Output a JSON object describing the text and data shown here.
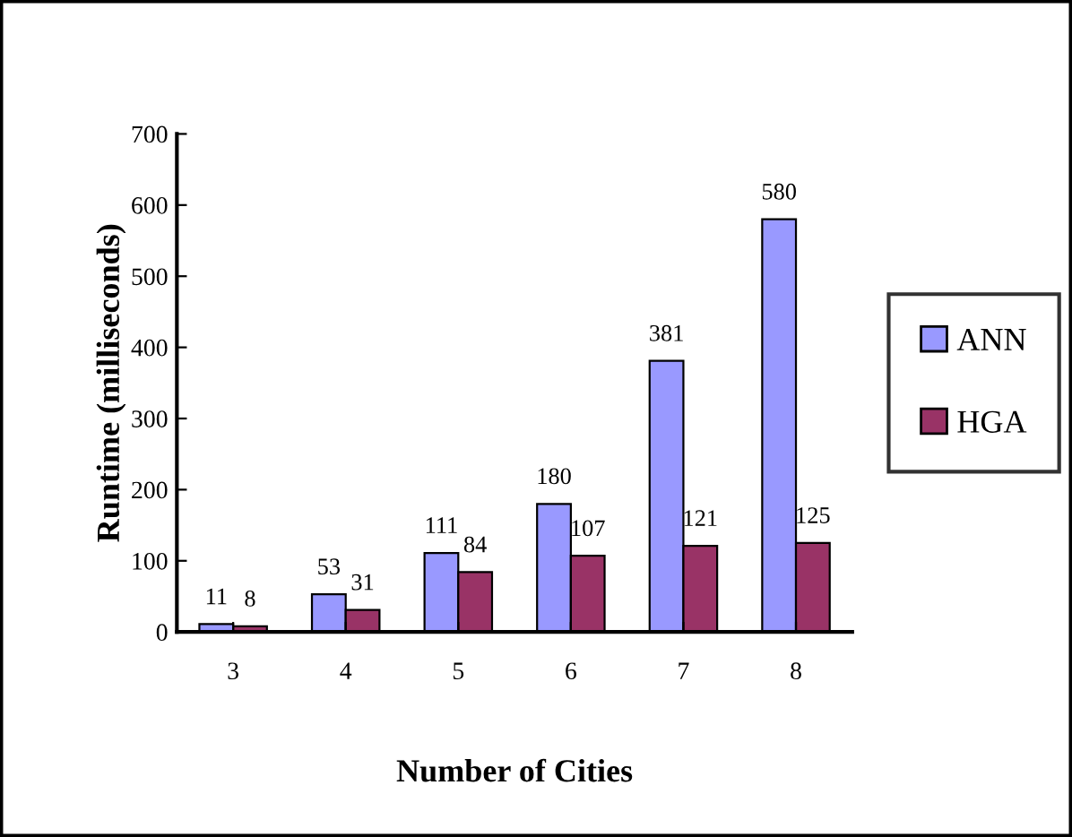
{
  "chart_data": {
    "type": "bar",
    "xlabel": "Number of Cities",
    "ylabel": "Runtime (milliseconds)",
    "categories": [
      "3",
      "4",
      "5",
      "6",
      "7",
      "8"
    ],
    "series": [
      {
        "name": "ANN",
        "color": "#9999ff",
        "values": [
          11,
          53,
          111,
          180,
          381,
          580
        ]
      },
      {
        "name": "HGA",
        "color": "#993366",
        "values": [
          8,
          31,
          84,
          107,
          121,
          125
        ]
      }
    ],
    "ylim": [
      0,
      700
    ],
    "yticks": [
      0,
      100,
      200,
      300,
      400,
      500,
      600,
      700
    ],
    "grid": false,
    "legend": "right",
    "data_labels": true
  }
}
